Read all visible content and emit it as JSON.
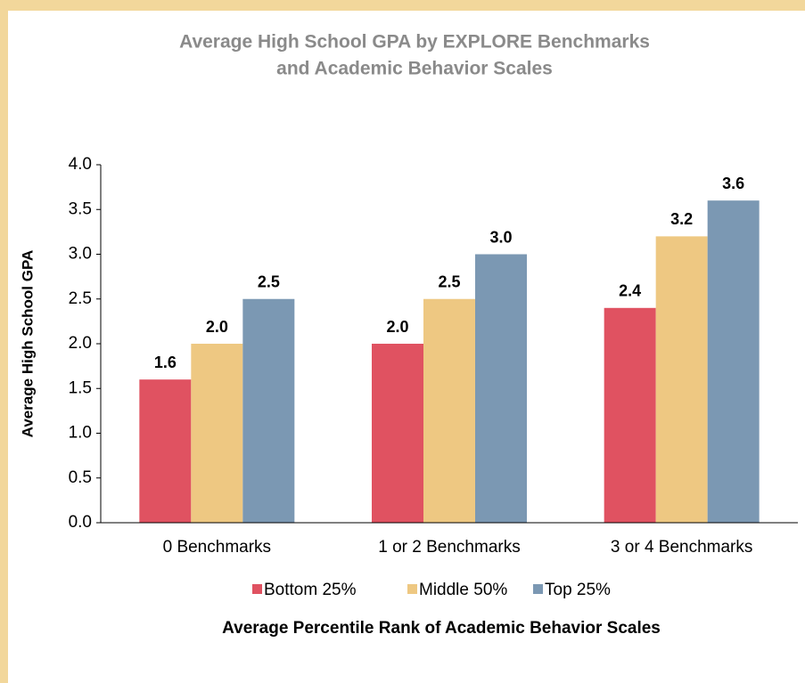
{
  "chart_data": {
    "type": "bar",
    "title": [
      "Average High School GPA by EXPLORE Benchmarks",
      "and Academic Behavior Scales"
    ],
    "y_label": "Average High School GPA",
    "x_label": "Average Percentile Rank of Academic Behavior Scales",
    "categories": [
      "0 Benchmarks",
      "1 or 2 Benchmarks",
      "3 or 4 Benchmarks"
    ],
    "series": [
      {
        "name": "Bottom 25%",
        "color": "#e05261",
        "values": [
          1.6,
          2,
          2.4
        ],
        "value_labels": [
          "1.6",
          "2.0",
          "2.4"
        ]
      },
      {
        "name": "Middle 50%",
        "color": "#eec882",
        "values": [
          2,
          2.5,
          3.2
        ],
        "value_labels": [
          "2.0",
          "2.5",
          "3.2"
        ]
      },
      {
        "name": "Top 25%",
        "color": "#7b98b3",
        "values": [
          2.5,
          3,
          3.6
        ],
        "value_labels": [
          "2.5",
          "3.0",
          "3.6"
        ]
      }
    ],
    "ylim": [
      0,
      4
    ],
    "yticks": [
      {
        "value": 0,
        "label": "0.0"
      },
      0.5,
      {
        "value": 1,
        "label": "1.0"
      },
      1.5,
      {
        "value": 2,
        "label": "2.0"
      },
      2.5,
      {
        "value": 3,
        "label": "3.0"
      },
      3.5,
      {
        "value": 4,
        "label": "4.0"
      }
    ],
    "legend": "bottom"
  }
}
